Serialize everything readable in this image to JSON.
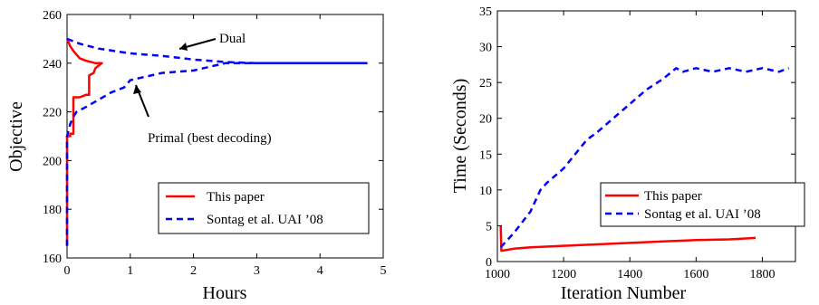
{
  "chart_data": [
    {
      "type": "line",
      "xlabel": "Hours",
      "ylabel": "Objective",
      "xlim": [
        0,
        5
      ],
      "ylim": [
        160,
        260
      ],
      "xticks": [
        0,
        1,
        2,
        3,
        4,
        5
      ],
      "yticks": [
        160,
        180,
        200,
        220,
        240,
        260
      ],
      "grid": false,
      "legend_position": "lower-right",
      "annotations": [
        "Dual",
        "Primal (best decoding)"
      ],
      "series": [
        {
          "name": "This paper",
          "color": "#ff0000",
          "style": "solid",
          "points": [
            [
              0,
              165
            ],
            [
              0,
              210
            ],
            [
              0.05,
              210
            ],
            [
              0.05,
              211
            ],
            [
              0.1,
              211
            ],
            [
              0.1,
              226
            ],
            [
              0.12,
              226
            ],
            [
              0.2,
              226
            ],
            [
              0.3,
              227
            ],
            [
              0.35,
              227
            ],
            [
              0.35,
              235
            ],
            [
              0.42,
              236
            ],
            [
              0.45,
              238
            ],
            [
              0.5,
              239
            ],
            [
              0.55,
              240
            ],
            [
              0.45,
              240
            ],
            [
              0.3,
              241
            ],
            [
              0.2,
              242
            ],
            [
              0.1,
              245
            ],
            [
              0.05,
              247
            ],
            [
              0,
              250
            ]
          ]
        },
        {
          "name": "Sontag et al. UAI ’08",
          "color": "#0000ff",
          "style": "dashed",
          "points": [
            [
              0,
              165
            ],
            [
              0,
              210
            ],
            [
              0.05,
              215
            ],
            [
              0.1,
              218
            ],
            [
              0.15,
              220
            ],
            [
              0.3,
              222
            ],
            [
              0.5,
              225
            ],
            [
              0.7,
              228
            ],
            [
              0.9,
              230
            ],
            [
              1.0,
              233
            ],
            [
              1.5,
              236
            ],
            [
              2.0,
              237
            ],
            [
              2.5,
              240
            ],
            [
              4.75,
              240
            ]
          ]
        },
        {
          "name": "Sontag et al. UAI ’08 dual",
          "color": "#0000ff",
          "style": "dashed",
          "points": [
            [
              0,
              250
            ],
            [
              0.2,
              248
            ],
            [
              0.5,
              246
            ],
            [
              1.0,
              244
            ],
            [
              1.5,
              243
            ],
            [
              2.0,
              241.5
            ],
            [
              2.5,
              240.5
            ],
            [
              3.0,
              240
            ],
            [
              4.75,
              240
            ]
          ]
        }
      ]
    },
    {
      "type": "line",
      "xlabel": "Iteration Number",
      "ylabel": "Time (Seconds)",
      "xlim": [
        1000,
        1900
      ],
      "ylim": [
        0,
        35
      ],
      "xticks": [
        1000,
        1200,
        1400,
        1600,
        1800
      ],
      "yticks": [
        0,
        5,
        10,
        15,
        20,
        25,
        30,
        35
      ],
      "grid": false,
      "legend_position": "lower-right",
      "series": [
        {
          "name": "This paper",
          "color": "#ff0000",
          "style": "solid",
          "points": [
            [
              1010,
              5
            ],
            [
              1012,
              1.5
            ],
            [
              1050,
              1.8
            ],
            [
              1100,
              2.0
            ],
            [
              1200,
              2.2
            ],
            [
              1300,
              2.4
            ],
            [
              1400,
              2.6
            ],
            [
              1500,
              2.8
            ],
            [
              1600,
              3.0
            ],
            [
              1700,
              3.1
            ],
            [
              1780,
              3.3
            ]
          ]
        },
        {
          "name": "Sontag et al. UAI ’08",
          "color": "#0000ff",
          "style": "dashed",
          "points": [
            [
              1010,
              2
            ],
            [
              1050,
              4
            ],
            [
              1100,
              7
            ],
            [
              1130,
              10
            ],
            [
              1150,
              11
            ],
            [
              1200,
              13
            ],
            [
              1270,
              17
            ],
            [
              1300,
              18
            ],
            [
              1350,
              20
            ],
            [
              1400,
              22
            ],
            [
              1450,
              24
            ],
            [
              1500,
              25.5
            ],
            [
              1540,
              27
            ],
            [
              1560,
              26.5
            ],
            [
              1600,
              27
            ],
            [
              1650,
              26.5
            ],
            [
              1700,
              27
            ],
            [
              1750,
              26.5
            ],
            [
              1800,
              27
            ],
            [
              1850,
              26.5
            ],
            [
              1880,
              27
            ]
          ]
        }
      ]
    }
  ]
}
